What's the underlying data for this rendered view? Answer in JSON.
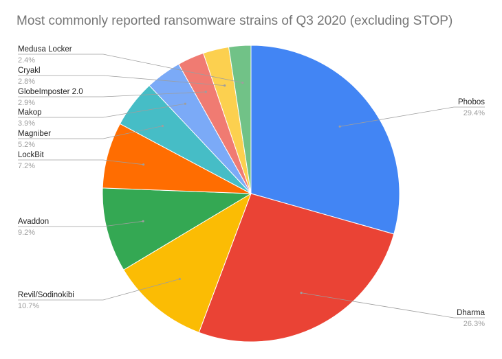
{
  "chart_data": {
    "type": "pie",
    "title": "Most commonly reported ransomware strains of Q3 2020 (excluding STOP)",
    "slices": [
      {
        "name": "Phobos",
        "value": 29.4,
        "label": "29.4%",
        "color": "#4285f4"
      },
      {
        "name": "Dharma",
        "value": 26.3,
        "label": "26.3%",
        "color": "#ea4335"
      },
      {
        "name": "Revil/Sodinokibi",
        "value": 10.7,
        "label": "10.7%",
        "color": "#fbbc04"
      },
      {
        "name": "Avaddon",
        "value": 9.2,
        "label": "9.2%",
        "color": "#34a853"
      },
      {
        "name": "LockBit",
        "value": 7.2,
        "label": "7.2%",
        "color": "#ff6d01"
      },
      {
        "name": "Magniber",
        "value": 5.2,
        "label": "5.2%",
        "color": "#46bdc6"
      },
      {
        "name": "Makop",
        "value": 3.9,
        "label": "3.9%",
        "color": "#7baaf7"
      },
      {
        "name": "GlobeImposter 2.0",
        "value": 2.9,
        "label": "2.9%",
        "color": "#f07b72"
      },
      {
        "name": "Cryakl",
        "value": 2.8,
        "label": "2.8%",
        "color": "#fcd04f"
      },
      {
        "name": "Medusa Locker",
        "value": 2.4,
        "label": "2.4%",
        "color": "#71c287"
      }
    ]
  }
}
